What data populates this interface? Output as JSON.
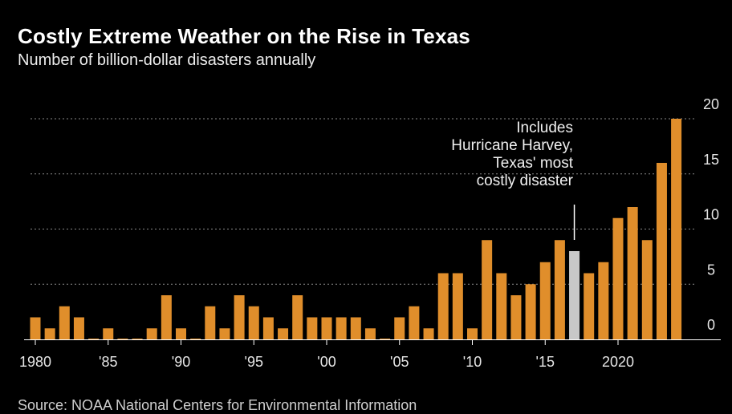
{
  "header": {
    "title": "Costly Extreme Weather on the Rise in Texas",
    "subtitle": "Number of billion-dollar disasters annually"
  },
  "footer": {
    "source": "Source: NOAA National Centers for Environmental Information"
  },
  "colors": {
    "background": "#000000",
    "bar": "#e08e2b",
    "highlight_bar": "#c8c8c8",
    "grid": "#8a8a8a",
    "text": "#ffffff"
  },
  "chart_data": {
    "type": "bar",
    "x": [
      1980,
      1981,
      1982,
      1983,
      1984,
      1985,
      1986,
      1987,
      1988,
      1989,
      1990,
      1991,
      1992,
      1993,
      1994,
      1995,
      1996,
      1997,
      1998,
      1999,
      2000,
      2001,
      2002,
      2003,
      2004,
      2005,
      2006,
      2007,
      2008,
      2009,
      2010,
      2011,
      2012,
      2013,
      2014,
      2015,
      2016,
      2017,
      2018,
      2019,
      2020,
      2021,
      2022,
      2023,
      2024
    ],
    "values": [
      2,
      1,
      3,
      2,
      0,
      1,
      0,
      0,
      1,
      4,
      1,
      0,
      3,
      1,
      4,
      3,
      2,
      1,
      4,
      2,
      2,
      2,
      2,
      1,
      0,
      2,
      3,
      1,
      6,
      6,
      1,
      9,
      6,
      4,
      5,
      7,
      9,
      8,
      6,
      7,
      11,
      12,
      9,
      16,
      20
    ],
    "highlight": 2017,
    "y_ticks": [
      0,
      5,
      10,
      15,
      20
    ],
    "ylim": [
      0,
      20
    ],
    "x_tick_labels": [
      {
        "year": 1980,
        "label": "1980"
      },
      {
        "year": 1985,
        "label": "'85"
      },
      {
        "year": 1990,
        "label": "'90"
      },
      {
        "year": 1995,
        "label": "'95"
      },
      {
        "year": 2000,
        "label": "'00"
      },
      {
        "year": 2005,
        "label": "'05"
      },
      {
        "year": 2010,
        "label": "'10"
      },
      {
        "year": 2015,
        "label": "'15"
      },
      {
        "year": 2020,
        "label": "2020"
      }
    ],
    "grid": true,
    "y_axis_position": "right",
    "annotation": {
      "year": 2017,
      "lines": [
        "Includes",
        "Hurricane Harvey,",
        "Texas' most",
        "costly disaster"
      ]
    }
  }
}
